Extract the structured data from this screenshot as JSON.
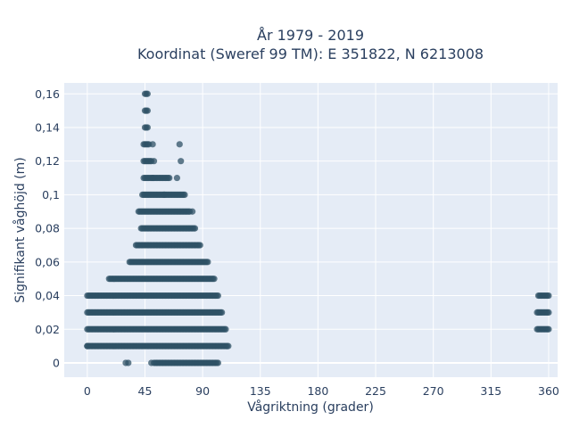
{
  "chart_data": {
    "type": "scatter",
    "title": "År 1979 - 2019",
    "subtitle": "Koordinat (Sweref 99 TM): E 351822, N 6213008",
    "xlabel": "Vågriktning (grader)",
    "ylabel": "Signifikant våghöjd (m)",
    "xlim": [
      -18,
      367
    ],
    "ylim": [
      -0.0085,
      0.1665
    ],
    "x_ticks": [
      0,
      45,
      90,
      135,
      180,
      225,
      270,
      315,
      360
    ],
    "x_tick_labels": [
      "0",
      "45",
      "90",
      "135",
      "180",
      "225",
      "270",
      "315",
      "360"
    ],
    "y_ticks": [
      0,
      0.02,
      0.04,
      0.06,
      0.08,
      0.1,
      0.12,
      0.14,
      0.16
    ],
    "y_tick_labels": [
      "0",
      "0,02",
      "0,04",
      "0,06",
      "0,08",
      "0,1",
      "0,12",
      "0,14",
      "0,16"
    ],
    "grid": true,
    "legend": "none",
    "colors": {
      "marker": "#2f5166",
      "plot_background": "#e5ecf6",
      "grid": "#ffffff",
      "text": "#2a3f5f"
    },
    "bands": [
      {
        "y": 0.0,
        "x_start": 52,
        "x_end": 102
      },
      {
        "y": 0.01,
        "x_start": 0,
        "x_end": 110
      },
      {
        "y": 0.02,
        "x_start": 0,
        "x_end": 108
      },
      {
        "y": 0.03,
        "x_start": 0,
        "x_end": 105
      },
      {
        "y": 0.04,
        "x_start": 0,
        "x_end": 102
      },
      {
        "y": 0.05,
        "x_start": 17,
        "x_end": 99
      },
      {
        "y": 0.06,
        "x_start": 33,
        "x_end": 94
      },
      {
        "y": 0.07,
        "x_start": 38,
        "x_end": 88
      },
      {
        "y": 0.08,
        "x_start": 42,
        "x_end": 84
      },
      {
        "y": 0.09,
        "x_start": 40,
        "x_end": 80
      },
      {
        "y": 0.1,
        "x_start": 43,
        "x_end": 76
      },
      {
        "y": 0.11,
        "x_start": 44,
        "x_end": 64
      },
      {
        "y": 0.12,
        "x_start": 44,
        "x_end": 50
      },
      {
        "y": 0.13,
        "x_start": 44,
        "x_end": 48
      },
      {
        "y": 0.14,
        "x_start": 45,
        "x_end": 47
      },
      {
        "y": 0.15,
        "x_start": 45,
        "x_end": 47
      },
      {
        "y": 0.16,
        "x_start": 45,
        "x_end": 47
      },
      {
        "y": 0.02,
        "x_start": 351,
        "x_end": 360
      },
      {
        "y": 0.03,
        "x_start": 351,
        "x_end": 360
      },
      {
        "y": 0.04,
        "x_start": 352,
        "x_end": 360
      }
    ],
    "points": [
      {
        "x": 0,
        "y": 0.01
      },
      {
        "x": 30,
        "y": 0.0
      },
      {
        "x": 32,
        "y": 0.0
      },
      {
        "x": 50,
        "y": 0.0
      },
      {
        "x": 52,
        "y": 0.12
      },
      {
        "x": 51,
        "y": 0.13
      },
      {
        "x": 72,
        "y": 0.13
      },
      {
        "x": 73,
        "y": 0.12
      },
      {
        "x": 70,
        "y": 0.11
      },
      {
        "x": 60,
        "y": 0.1
      },
      {
        "x": 82,
        "y": 0.09
      },
      {
        "x": 51,
        "y": 0.11
      }
    ]
  }
}
